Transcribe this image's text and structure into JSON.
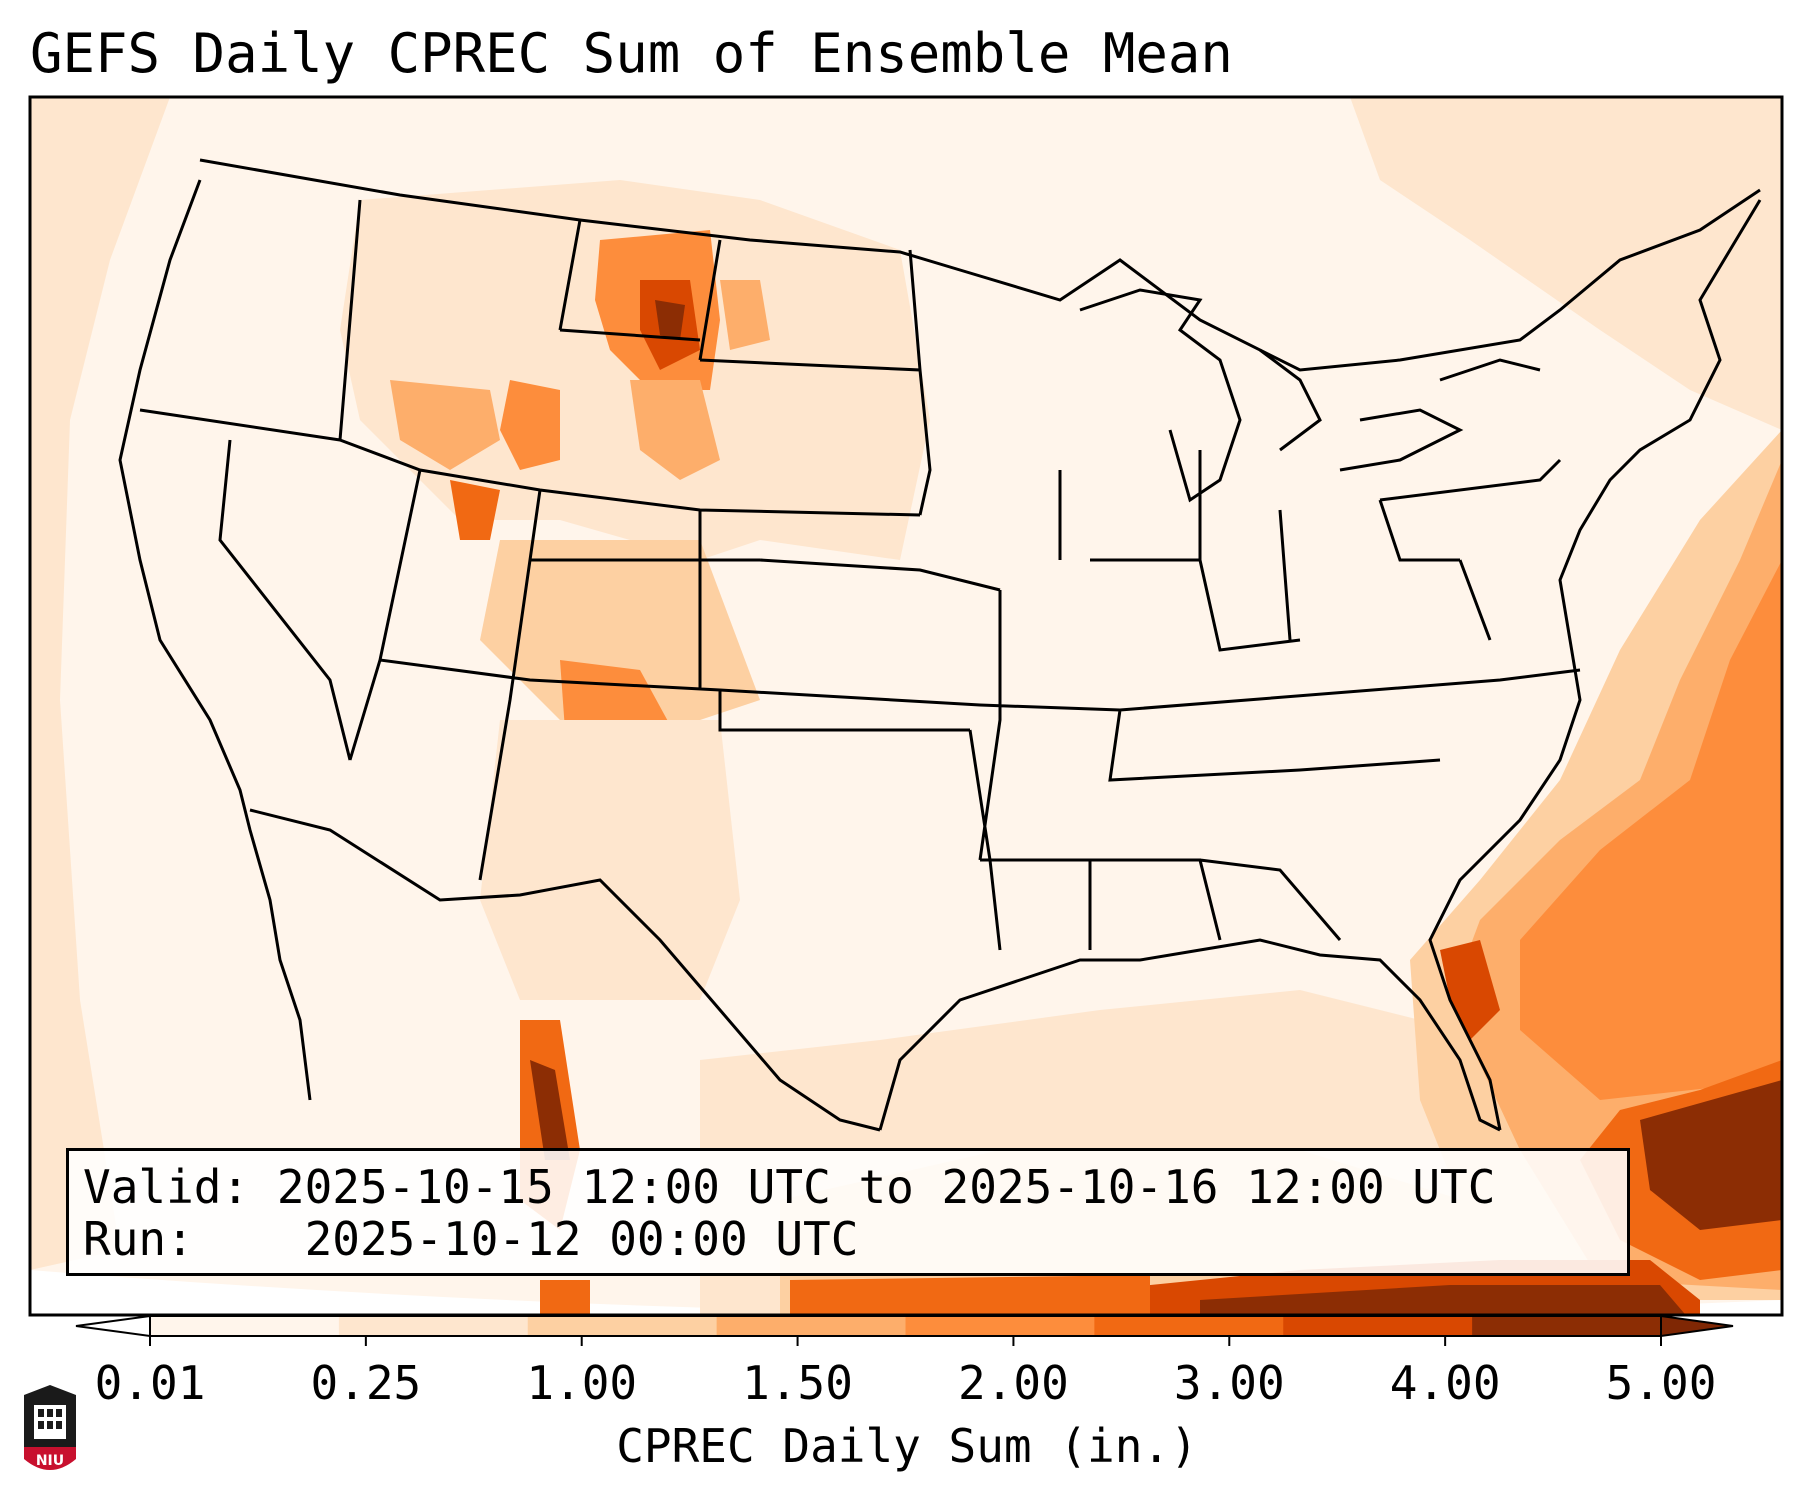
{
  "title": "GEFS Daily CPREC Sum of Ensemble Mean",
  "info_box": {
    "valid_label": "Valid:",
    "valid_text": "2025-10-15 12:00 UTC to 2025-10-16 12:00 UTC",
    "run_label": "Run:",
    "run_text": "2025-10-12 00:00 UTC"
  },
  "colorbar": {
    "label": "CPREC Daily Sum (in.)",
    "ticks": [
      "0.01",
      "0.25",
      "1.00",
      "1.50",
      "2.00",
      "3.00",
      "4.00",
      "5.00"
    ],
    "colors": [
      "#fff5eb",
      "#fee6ce",
      "#fdd0a2",
      "#fdae6b",
      "#fd8d3c",
      "#f16913",
      "#d94801",
      "#8c2d04"
    ],
    "extend": "both"
  },
  "map": {
    "region": "CONUS",
    "field": "CPREC",
    "max_areas": [
      "Montana / North Dakota border",
      "New Mexico",
      "western Atlantic south of Carolinas",
      "Gulf of Mexico / Cuba"
    ]
  },
  "logo_text": "NIU"
}
